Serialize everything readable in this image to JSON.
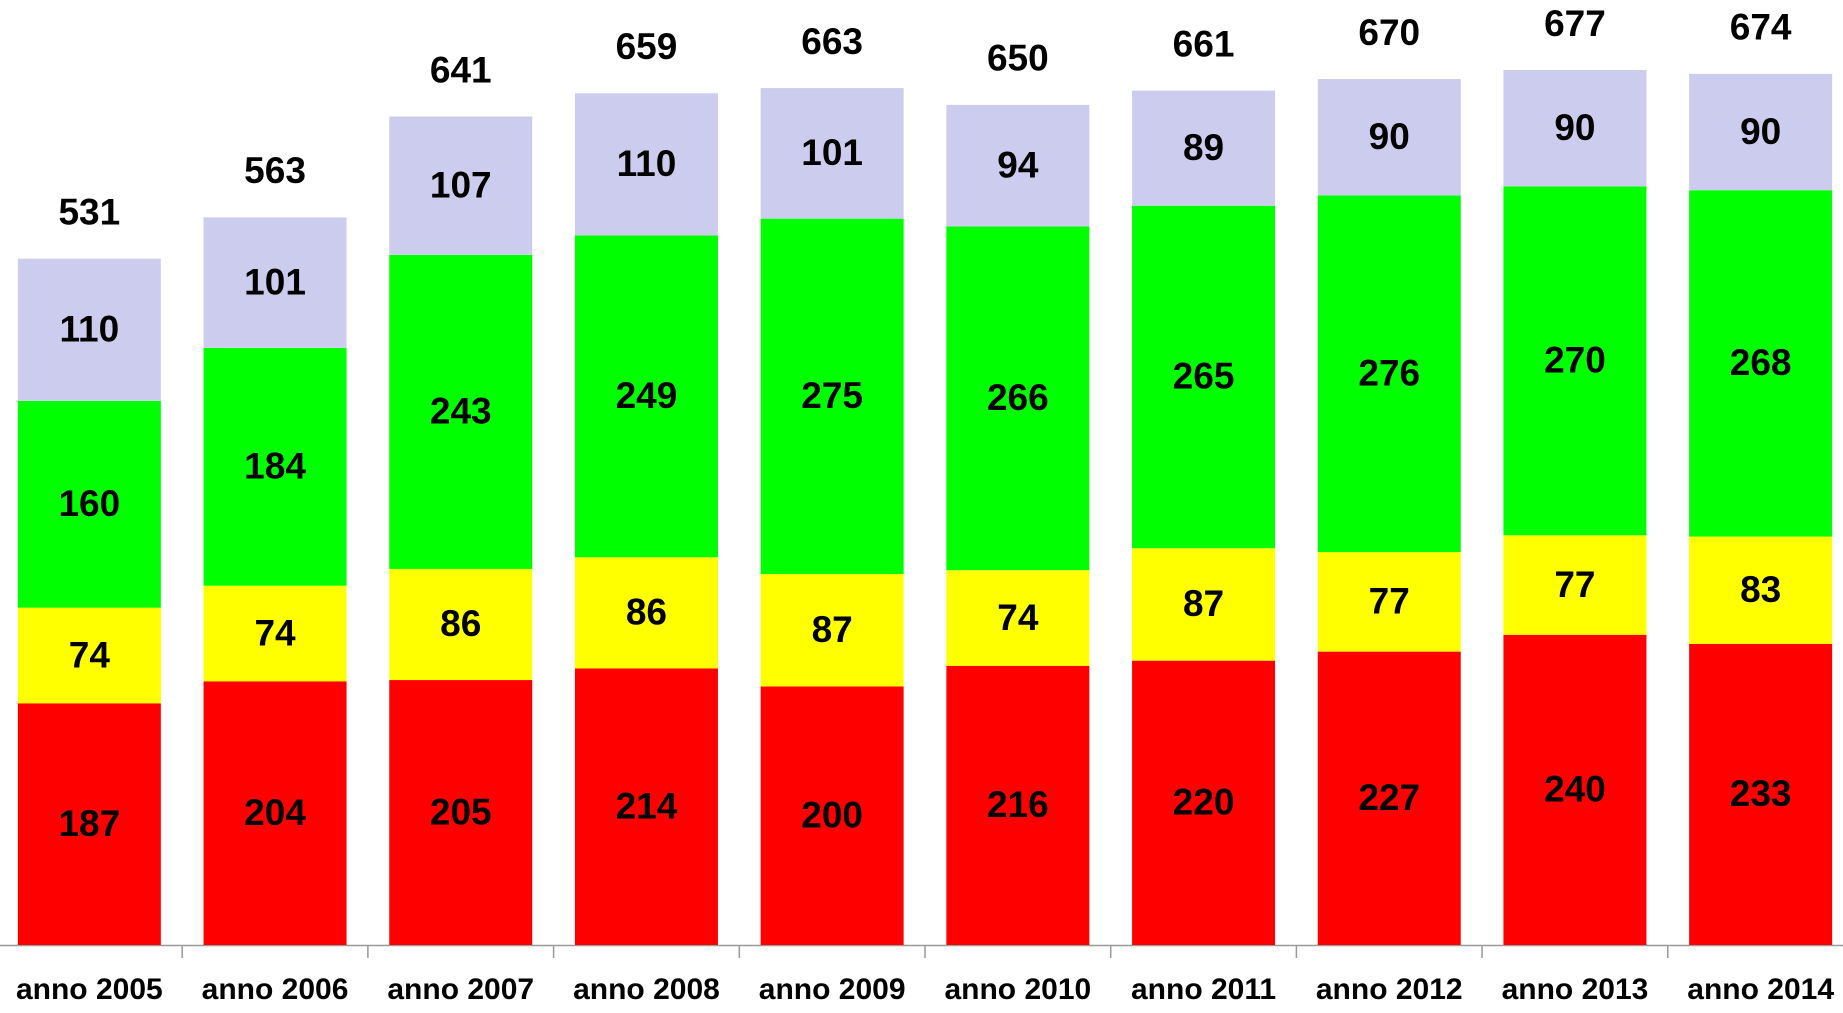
{
  "chart_data": {
    "type": "stacked-bar",
    "categories": [
      "anno 2005",
      "anno 2006",
      "anno 2007",
      "anno 2008",
      "anno 2009",
      "anno 2010",
      "anno 2011",
      "anno 2012",
      "anno 2013",
      "anno 2014"
    ],
    "series": [
      {
        "color": "#ff0000",
        "values": [
          187,
          204,
          205,
          214,
          200,
          216,
          220,
          227,
          240,
          233
        ]
      },
      {
        "color": "#ffff00",
        "values": [
          74,
          74,
          86,
          86,
          87,
          74,
          87,
          77,
          77,
          83
        ]
      },
      {
        "color": "#00ff00",
        "values": [
          160,
          184,
          243,
          249,
          275,
          266,
          265,
          276,
          270,
          268
        ]
      },
      {
        "color": "#ccccee",
        "values": [
          110,
          101,
          107,
          110,
          101,
          94,
          89,
          90,
          90,
          90
        ]
      }
    ],
    "totals": [
      531,
      563,
      641,
      659,
      663,
      650,
      661,
      670,
      677,
      674
    ]
  }
}
